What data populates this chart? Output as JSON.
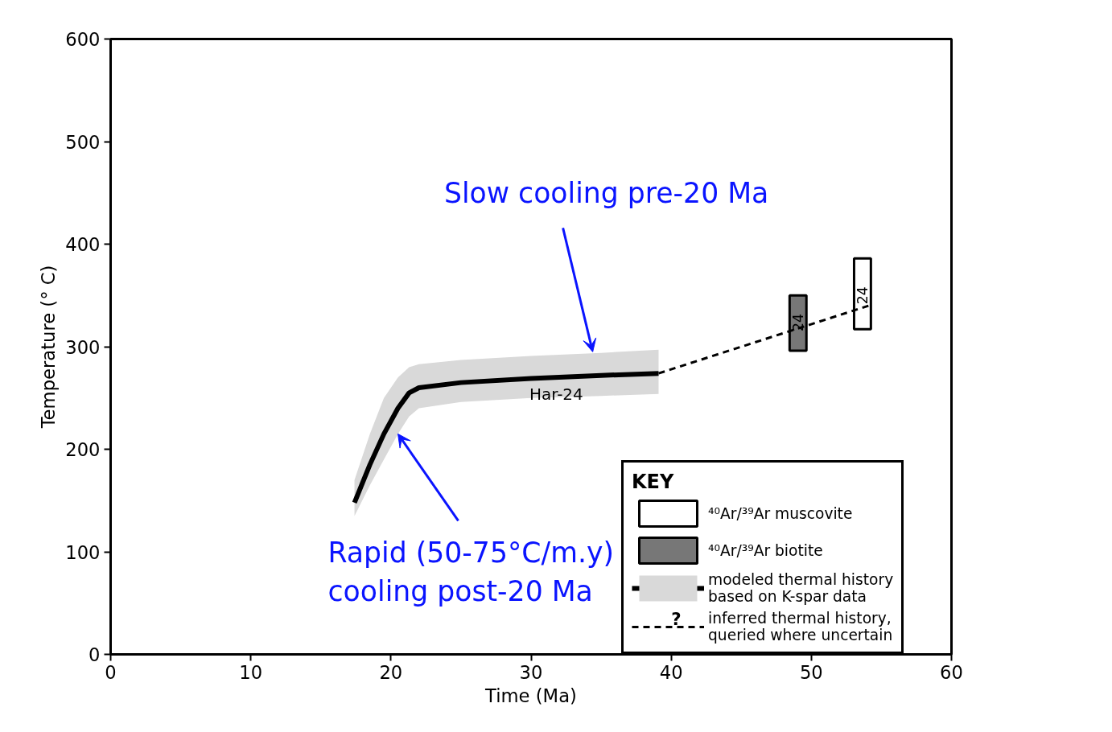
{
  "chart_data": {
    "type": "line",
    "xlabel": "Time (Ma)",
    "ylabel": "Temperature (° C)",
    "legend_title": "KEY",
    "xlim": [
      0,
      60
    ],
    "xticks": [
      0,
      10,
      20,
      30,
      40,
      50,
      60
    ],
    "ylim": [
      0,
      600
    ],
    "yticks": [
      0,
      100,
      200,
      300,
      400,
      500,
      600
    ],
    "grid": false,
    "legend": "bottom right",
    "series": [
      {
        "type": "bar",
        "name": "⁴⁰Ar/³⁹Ar muscovite",
        "color": "#ffffff",
        "x": [
          53.65
        ],
        "base": [
          317
        ],
        "values": [
          69
        ]
      },
      {
        "type": "bar",
        "name": "⁴⁰Ar/³⁹Ar biotite",
        "color": "#777777",
        "x": [
          49.05
        ],
        "base": [
          296
        ],
        "values": [
          54
        ]
      },
      {
        "name": "modeled thermal history\nbased on K-spar data",
        "color": "#000000",
        "line_style": "solid",
        "x": [
          17.4,
          18.5,
          19.5,
          20.5,
          21.3,
          22,
          25,
          30,
          35,
          39.1
        ],
        "values": [
          148,
          185,
          215,
          240,
          255,
          260,
          265,
          269,
          272,
          274
        ],
        "lower": [
          135,
          165,
          190,
          215,
          232,
          240,
          246,
          250,
          252,
          254
        ],
        "upper": [
          170,
          215,
          250,
          270,
          280,
          283,
          287,
          291,
          294,
          297
        ]
      },
      {
        "name": "inferred thermal history,\nqueried where uncertain",
        "color": "#000000",
        "line_style": "dashed",
        "x": [
          39.1,
          54.1
        ],
        "values": [
          274,
          340
        ]
      }
    ],
    "annotations": [
      {
        "text": "Slow cooling pre-20 Ma",
        "x": 34.4,
        "y": 295
      },
      {
        "text": "Rapid (50-75°C/m.y)\ncooling post-20 Ma",
        "x": 20.5,
        "y": 215
      },
      {
        "text": "Har-24",
        "x": 31.8,
        "y": 254
      },
      {
        "text": "24",
        "x": 49.05,
        "y": 296
      },
      {
        "text": "24",
        "x": 53.65,
        "y": 317
      },
      "?"
    ]
  }
}
